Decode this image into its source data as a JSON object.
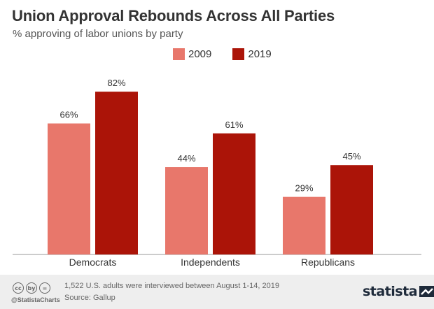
{
  "colors": {
    "series_2009": "#e8776b",
    "series_2019": "#ab1408",
    "text": "#333333",
    "footer_bg": "#eeeeee"
  },
  "chart_data": {
    "type": "bar",
    "title": "Union Approval Rebounds Across All Parties",
    "subtitle": "% approving of labor unions by party",
    "categories": [
      "Democrats",
      "Independents",
      "Republicans"
    ],
    "series": [
      {
        "name": "2009",
        "values": [
          66,
          44,
          29
        ],
        "labels": [
          "66%",
          "44%",
          "29%"
        ]
      },
      {
        "name": "2019",
        "values": [
          82,
          61,
          45
        ],
        "labels": [
          "82%",
          "61%",
          "45%"
        ]
      }
    ],
    "xlabel": "",
    "ylabel": "",
    "ylim": [
      0,
      100
    ],
    "grid": false,
    "legend": "top-center"
  },
  "footer": {
    "cc_icons": [
      "cc",
      "by",
      "="
    ],
    "handle": "@StatistaCharts",
    "note": "1,522 U.S. adults were interviewed between August 1-14, 2019",
    "source": "Source: Gallup",
    "logo": "statista"
  }
}
